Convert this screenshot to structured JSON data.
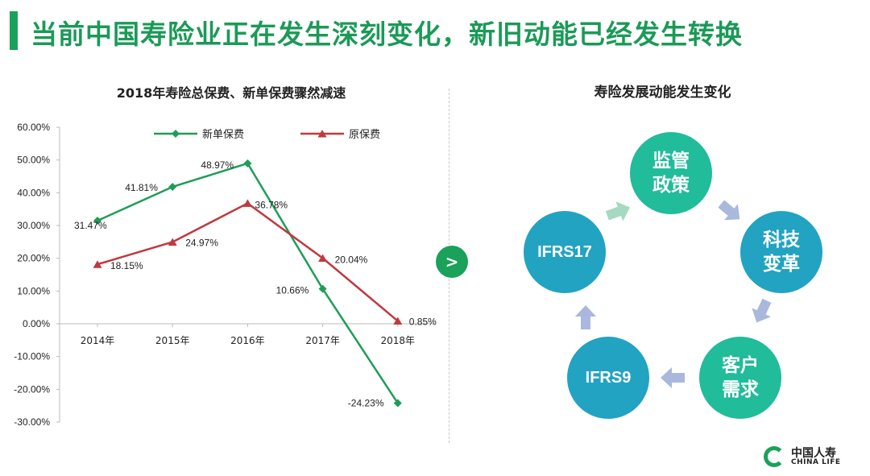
{
  "slide": {
    "title": "当前中国寿险业正在发生深刻变化，新旧动能已经发生转换"
  },
  "colors": {
    "accent_green": "#1aa15a",
    "series_new": "#1f9d57",
    "series_original": "#c0393f",
    "node_teal": "#21bc9a",
    "node_blue": "#22a3c2",
    "arrow_light": "#a9b8dc",
    "arrow_green": "#a6d9c2"
  },
  "chart_data": {
    "type": "line",
    "title": "2018年寿险总保费、新单保费骤然减速",
    "categories": [
      "2014年",
      "2015年",
      "2016年",
      "2017年",
      "2018年"
    ],
    "series": [
      {
        "name": "新单保费",
        "marker": "diamond",
        "values": [
          31.47,
          41.81,
          48.97,
          10.66,
          -24.23
        ],
        "labels": [
          "31.47%",
          "41.81%",
          "48.97%",
          "10.66%",
          "-24.23%"
        ]
      },
      {
        "name": "原保费",
        "marker": "triangle",
        "values": [
          18.15,
          24.97,
          36.78,
          20.04,
          0.85
        ],
        "labels": [
          "18.15%",
          "24.97%",
          "36.78%",
          "20.04%",
          "0.85%"
        ]
      }
    ],
    "yticks": [
      "60.00%",
      "50.00%",
      "40.00%",
      "30.00%",
      "20.00%",
      "10.00%",
      "0.00%",
      "-10.00%",
      "-20.00%",
      "-30.00%"
    ],
    "ylim": [
      -30,
      60
    ],
    "xlabel": "",
    "ylabel": "",
    "legend_position": "top"
  },
  "transition": {
    "symbol": ">"
  },
  "cycle": {
    "title": "寿险发展动能发生变化",
    "nodes": [
      {
        "label": "监管政策"
      },
      {
        "label": "科技变革"
      },
      {
        "label": "客户需求"
      },
      {
        "label": "IFRS9"
      },
      {
        "label": "IFRS17"
      }
    ]
  },
  "logo": {
    "name_cn": "中国人寿",
    "name_en": "CHINA LIFE"
  }
}
